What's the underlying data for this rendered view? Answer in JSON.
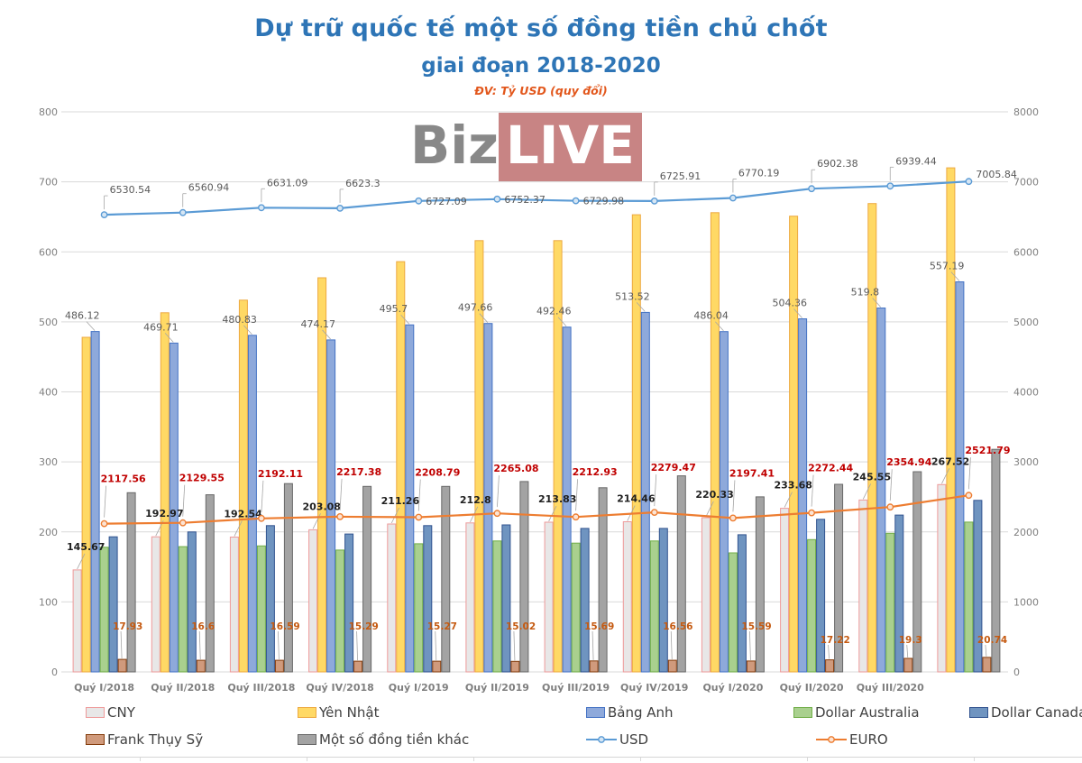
{
  "header": {
    "title": "Dự trữ quốc tế một số đồng tiền chủ chốt",
    "subtitle": "giai đoạn 2018-2020",
    "unit_note": "ĐV: Tỷ USD (quy đổi)"
  },
  "watermark": {
    "text_dark": "Biz",
    "text_light": "LIVE"
  },
  "chart_data": {
    "type": "bar",
    "combo": "grouped bars (left axis) + two lines (right axis)",
    "title": "Dự trữ quốc tế một số đồng tiền chủ chốt giai đoạn 2018-2020",
    "unit": "Tỷ USD (quy đổi)",
    "grid": true,
    "legend_position": "bottom",
    "categories": [
      "Quý I/2018",
      "Quý II/2018",
      "Quý III/2018",
      "Quý IV/2018",
      "Quý I/2019",
      "Quý II/2019",
      "Quý III/2019",
      "Quý IV/2019",
      "Quý I/2020",
      "Quý II/2020",
      "Quý III/2020",
      ""
    ],
    "left_axis": {
      "min": 0,
      "max": 800,
      "step": 100
    },
    "right_axis": {
      "min": 0,
      "max": 8000,
      "step": 1000
    },
    "axis_ticks": {
      "left": [
        "800",
        "700",
        "600",
        "500",
        "400",
        "300",
        "200",
        "100",
        "0"
      ],
      "right": [
        "8000",
        "7000",
        "6000",
        "5000",
        "4000",
        "3000",
        "2000",
        "1000",
        "0"
      ]
    },
    "series": [
      {
        "name": "CNY",
        "kind": "bar",
        "axis": "left",
        "fill": "#e8e7e7",
        "stroke": "#ee9a9a",
        "show_labels": true,
        "label_color": "#1f1f1f",
        "values": [
          145.67,
          192.97,
          192.54,
          203.08,
          211.26,
          212.8,
          213.83,
          214.46,
          220.33,
          233.68,
          245.55,
          267.52
        ]
      },
      {
        "name": "Yên Nhật",
        "kind": "bar",
        "axis": "left",
        "fill": "#ffd965",
        "stroke": "#eda940",
        "show_labels": false,
        "estimated": true,
        "values": [
          478,
          513,
          531,
          563,
          586,
          616,
          616,
          653,
          656,
          651,
          669,
          720
        ]
      },
      {
        "name": "Bảng Anh",
        "kind": "bar",
        "axis": "left",
        "fill": "#8ea9db",
        "stroke": "#4472c4",
        "show_labels": true,
        "label_color": "#595959",
        "values": [
          486.12,
          469.71,
          480.83,
          474.17,
          495.7,
          497.66,
          492.46,
          513.52,
          486.04,
          504.36,
          519.8,
          557.19
        ]
      },
      {
        "name": "Dollar Australia",
        "kind": "bar",
        "axis": "left",
        "fill": "#a9d08e",
        "stroke": "#70ad47",
        "show_labels": false,
        "estimated": true,
        "values": [
          178,
          179,
          180,
          174,
          183,
          187,
          184,
          187,
          170,
          189,
          198,
          214
        ]
      },
      {
        "name": "Dollar Canada",
        "kind": "bar",
        "axis": "left",
        "fill": "#6f94c0",
        "stroke": "#31538f",
        "show_labels": false,
        "estimated": true,
        "values": [
          193,
          200,
          209,
          197,
          209,
          210,
          205,
          205,
          196,
          218,
          224,
          245
        ]
      },
      {
        "name": "Frank Thụy Sỹ",
        "kind": "bar",
        "axis": "left",
        "fill": "#d09a7c",
        "stroke": "#843c0c",
        "show_labels": true,
        "label_color": "#c55a11",
        "values": [
          17.93,
          16.6,
          16.59,
          15.29,
          15.27,
          15.02,
          15.69,
          16.56,
          15.59,
          17.22,
          19.3,
          20.74
        ]
      },
      {
        "name": "Một số đồng tiền khác",
        "kind": "bar",
        "axis": "left",
        "fill": "#a3a3a3",
        "stroke": "#686868",
        "show_labels": false,
        "estimated": true,
        "values": [
          256,
          253,
          269,
          265,
          265,
          272,
          263,
          280,
          250,
          268,
          286,
          318
        ]
      },
      {
        "name": "USD",
        "kind": "line",
        "axis": "right",
        "color": "#5b9bd5",
        "marker_fill": "#d6e6f4",
        "show_labels": true,
        "label_color": "#595959",
        "values": [
          6530.54,
          6560.94,
          6631.09,
          6623.3,
          6727.09,
          6752.37,
          6729.98,
          6725.91,
          6770.19,
          6902.38,
          6939.44,
          7005.84
        ]
      },
      {
        "name": "EURO",
        "kind": "line",
        "axis": "right",
        "color": "#ed7d31",
        "marker_fill": "#fce4d4",
        "show_labels": true,
        "label_color": "#c00000",
        "values": [
          2117.56,
          2129.55,
          2192.11,
          2217.38,
          2208.79,
          2265.08,
          2212.93,
          2279.47,
          2197.41,
          2272.44,
          2354.94,
          2521.79
        ]
      }
    ]
  }
}
